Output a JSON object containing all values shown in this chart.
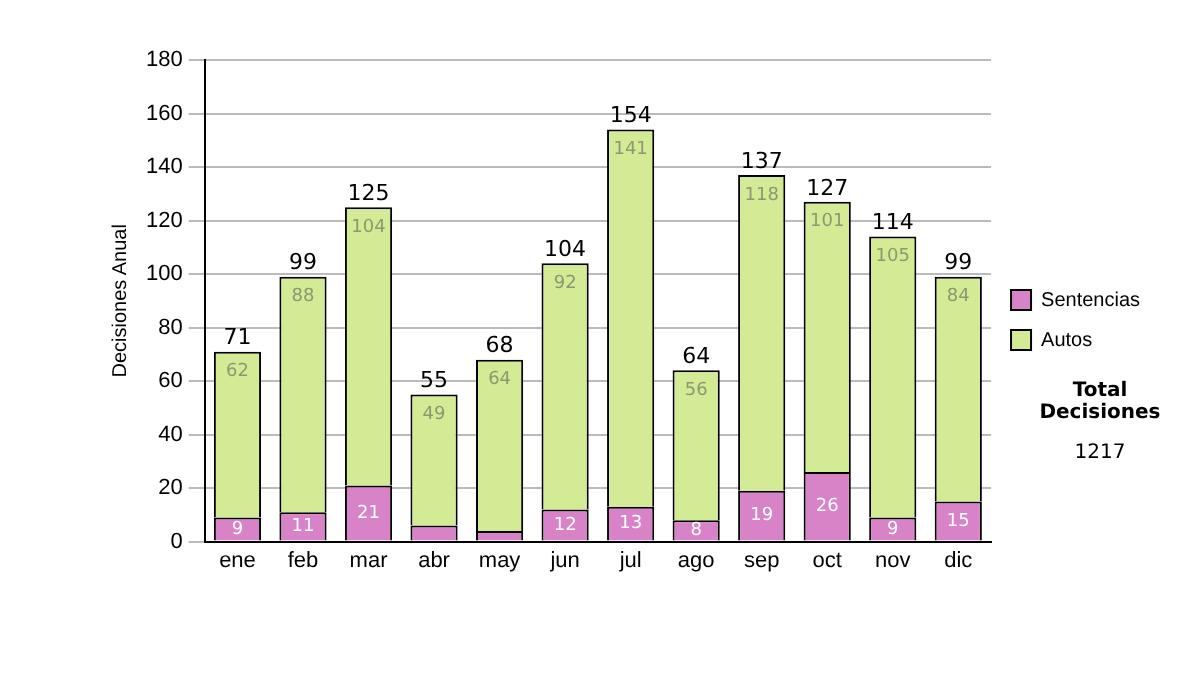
{
  "chart_data": {
    "type": "bar",
    "stacked": true,
    "ylabel": "Decisiones Anual",
    "categories": [
      "ene",
      "feb",
      "mar",
      "abr",
      "may",
      "jun",
      "jul",
      "ago",
      "sep",
      "oct",
      "nov",
      "dic"
    ],
    "series": [
      {
        "name": "Sentencias",
        "color": "#d882c8",
        "values": [
          9,
          11,
          21,
          6,
          4,
          12,
          13,
          8,
          19,
          26,
          9,
          15
        ],
        "value_labels": [
          "9",
          "11",
          "21",
          null,
          null,
          "12",
          "13",
          "8",
          "19",
          "26",
          "9",
          "15"
        ]
      },
      {
        "name": "Autos",
        "color": "#d4eb96",
        "values": [
          62,
          88,
          104,
          49,
          64,
          92,
          141,
          56,
          118,
          101,
          105,
          84
        ],
        "value_labels": [
          "62",
          "88",
          "104",
          "49",
          "64",
          "92",
          "141",
          "56",
          "118",
          "101",
          "105",
          "84"
        ]
      }
    ],
    "totals": [
      "71",
      "99",
      "125",
      "55",
      "68",
      "104",
      "154",
      "64",
      "137",
      "127",
      "114",
      "99"
    ],
    "ylim": [
      0,
      180
    ],
    "yticks": [
      0,
      20,
      40,
      60,
      80,
      100,
      120,
      140,
      160,
      180
    ],
    "grid": "y",
    "legend": "right",
    "annotations": [
      "Total Decisiones",
      "1217"
    ]
  }
}
